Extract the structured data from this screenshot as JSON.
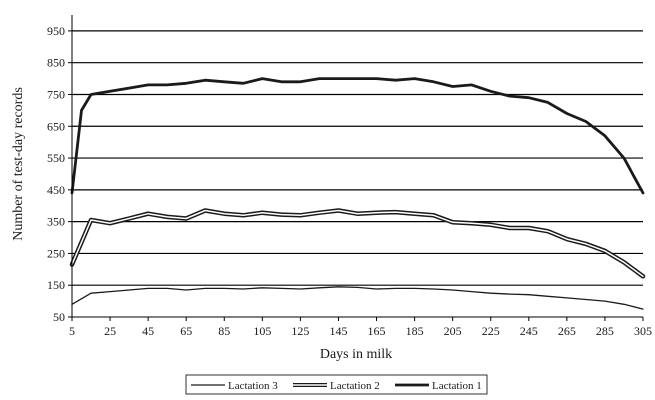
{
  "chart_data": {
    "type": "line",
    "xlabel": "Days in milk",
    "ylabel": "Number of test-day records",
    "xlim": [
      5,
      305
    ],
    "ylim": [
      50,
      1000
    ],
    "xticks": [
      5,
      25,
      45,
      65,
      85,
      105,
      125,
      145,
      165,
      185,
      205,
      225,
      245,
      265,
      285,
      305
    ],
    "yticks": [
      50,
      150,
      250,
      350,
      450,
      550,
      650,
      750,
      850,
      950
    ],
    "grid": "horizontal",
    "legend_position": "bottom",
    "series": [
      {
        "name": "Lactation 3",
        "style": "thin",
        "x": [
          5,
          15,
          25,
          35,
          45,
          55,
          65,
          75,
          85,
          95,
          105,
          115,
          125,
          135,
          145,
          155,
          165,
          175,
          185,
          195,
          205,
          215,
          225,
          235,
          245,
          255,
          265,
          275,
          285,
          295,
          305
        ],
        "y": [
          90,
          125,
          130,
          135,
          140,
          140,
          135,
          140,
          140,
          138,
          142,
          140,
          138,
          142,
          145,
          143,
          138,
          140,
          140,
          138,
          135,
          130,
          125,
          122,
          120,
          115,
          110,
          105,
          100,
          90,
          75
        ]
      },
      {
        "name": "Lactation 2",
        "style": "outlined",
        "x": [
          5,
          15,
          25,
          35,
          45,
          55,
          65,
          75,
          85,
          95,
          105,
          115,
          125,
          135,
          145,
          155,
          165,
          175,
          185,
          195,
          205,
          215,
          225,
          235,
          245,
          255,
          265,
          275,
          285,
          295,
          305
        ],
        "y": [
          215,
          355,
          345,
          360,
          375,
          365,
          360,
          385,
          375,
          370,
          378,
          372,
          370,
          378,
          385,
          375,
          378,
          380,
          375,
          370,
          348,
          345,
          340,
          330,
          330,
          320,
          295,
          280,
          258,
          222,
          178
        ]
      },
      {
        "name": "Lactation 1",
        "style": "thick",
        "x": [
          5,
          10,
          15,
          25,
          35,
          45,
          55,
          65,
          75,
          85,
          95,
          105,
          115,
          125,
          135,
          145,
          155,
          165,
          175,
          185,
          195,
          205,
          215,
          225,
          235,
          245,
          255,
          265,
          275,
          285,
          295,
          305
        ],
        "y": [
          440,
          700,
          750,
          760,
          770,
          780,
          780,
          785,
          795,
          790,
          785,
          800,
          790,
          790,
          800,
          800,
          800,
          800,
          795,
          800,
          790,
          775,
          780,
          760,
          745,
          740,
          725,
          690,
          665,
          620,
          550,
          440
        ]
      }
    ]
  }
}
